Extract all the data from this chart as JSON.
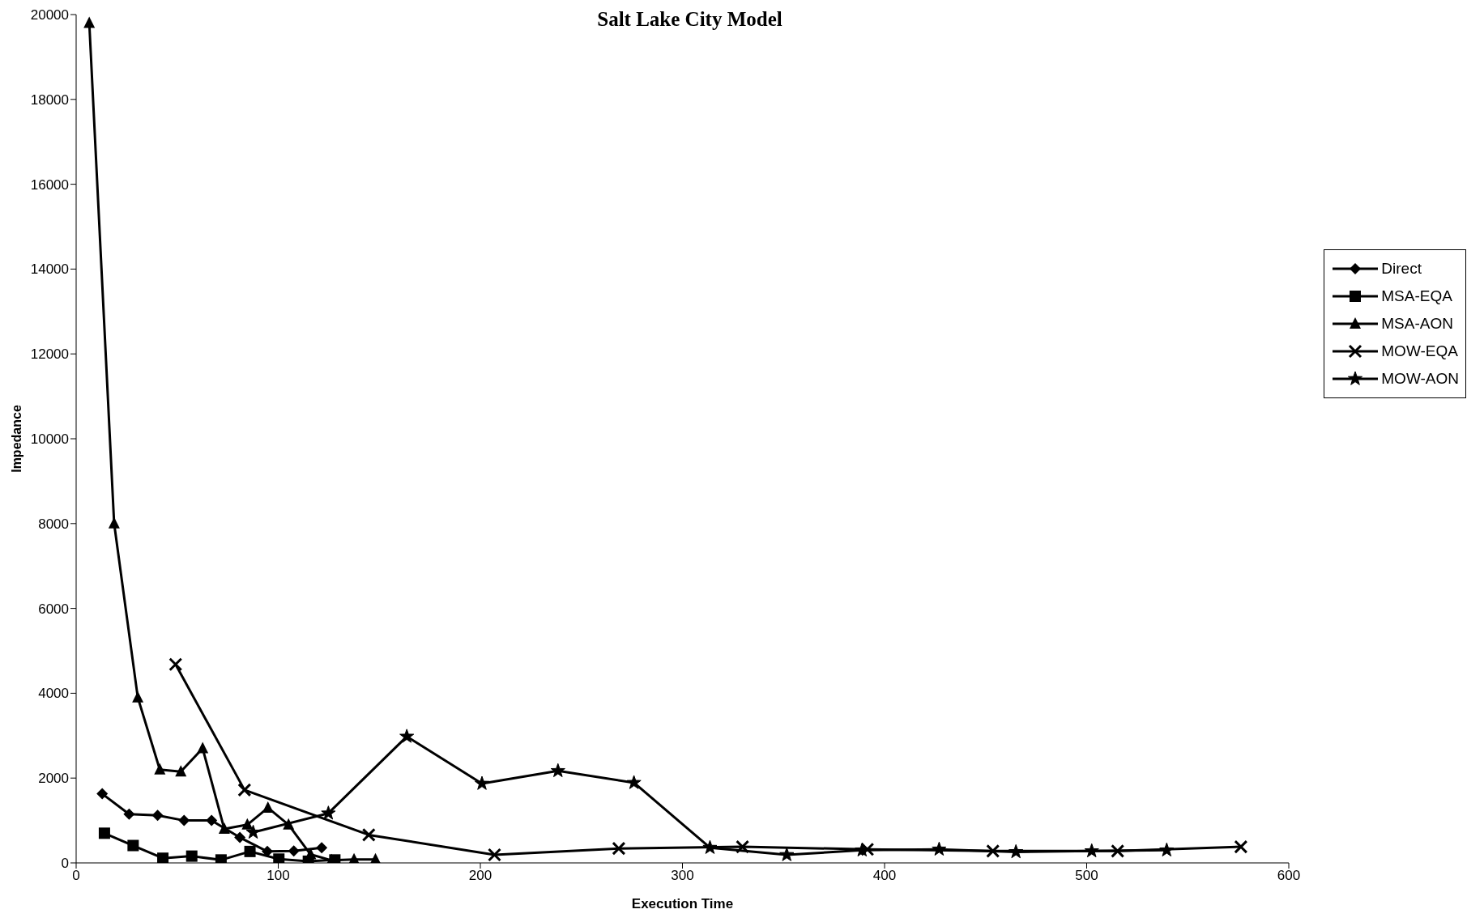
{
  "chart_data": {
    "type": "line",
    "title": "Salt Lake City Model",
    "xlabel": "Execution Time",
    "ylabel": "Impedance",
    "xlim": [
      0,
      600
    ],
    "xticks": [
      0,
      100,
      200,
      300,
      400,
      500,
      600
    ],
    "ylim": [
      0,
      20000
    ],
    "yticks": [
      0,
      2000,
      4000,
      6000,
      8000,
      10000,
      12000,
      14000,
      16000,
      18000,
      20000
    ],
    "grid": false,
    "legend": "right",
    "line_style": "solid",
    "series": [
      {
        "name": "Direct",
        "color": "#000000",
        "marker": "diamond",
        "x": [
          12.9,
          26.2,
          40.3,
          53.4,
          67,
          81,
          94.6,
          107.7,
          121.5
        ],
        "values": [
          1630,
          1150,
          1120,
          1000,
          1000,
          600,
          270,
          280,
          360
        ]
      },
      {
        "name": "MSA-EQA",
        "color": "#000000",
        "marker": "square",
        "x": [
          14,
          28.2,
          42.9,
          57.2,
          71.7,
          86,
          100.3,
          114.9,
          128
        ],
        "values": [
          700,
          410,
          110,
          160,
          70,
          270,
          90,
          40,
          70
        ]
      },
      {
        "name": "MSA-AON",
        "color": "#000000",
        "marker": "triangle",
        "x": [
          6.5,
          18.8,
          30.5,
          41.4,
          51.8,
          62.6,
          73.3,
          84.7,
          94.9,
          105.1,
          116,
          126.4,
          137.5,
          148.1
        ],
        "values": [
          19800,
          8000,
          3900,
          2200,
          2150,
          2700,
          800,
          900,
          1300,
          900,
          200,
          60,
          80,
          80
        ]
      },
      {
        "name": "MOW-EQA",
        "color": "#000000",
        "marker": "cross",
        "x": [
          49.2,
          83.3,
          144.8,
          207,
          268.5,
          329.7,
          391.5,
          453.6,
          515.3,
          576.3
        ],
        "values": [
          4680,
          1720,
          660,
          190,
          340,
          380,
          320,
          280,
          280,
          380
        ]
      },
      {
        "name": "MOW-AON",
        "color": "#000000",
        "marker": "star",
        "x": [
          87.6,
          124.8,
          163.6,
          200.8,
          238.4,
          276,
          313.6,
          351.6,
          388.9,
          427,
          465,
          502.5,
          539.6
        ],
        "values": [
          720,
          1170,
          2980,
          1870,
          2170,
          1890,
          360,
          190,
          300,
          320,
          260,
          280,
          300
        ]
      }
    ]
  }
}
